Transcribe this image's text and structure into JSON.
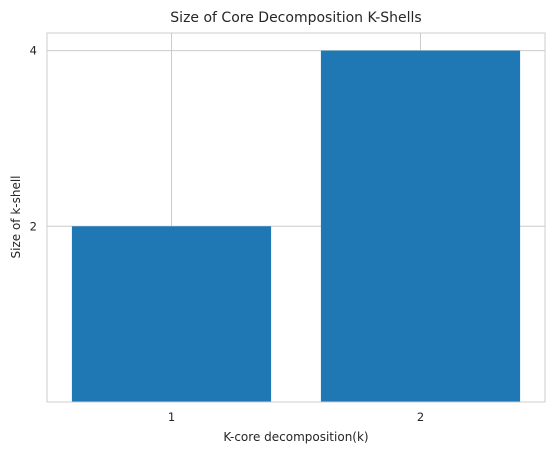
{
  "chart_data": {
    "type": "bar",
    "title": "Size of Core Decomposition K-Shells",
    "xlabel": "K-core decomposition(k)",
    "ylabel": "Size of k-shell",
    "categories": [
      "1",
      "2"
    ],
    "values": [
      2,
      4
    ],
    "ylim": [
      0,
      4.2
    ],
    "yticks": [
      2,
      4
    ],
    "grid": true,
    "bar_color": "#1f77b4",
    "grid_color": "#cccccc"
  }
}
